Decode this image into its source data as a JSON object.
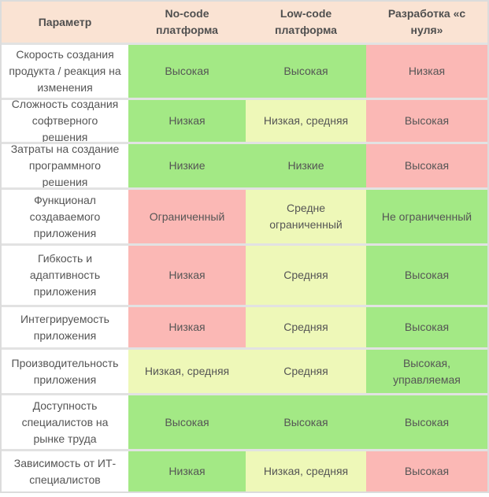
{
  "palette": {
    "header_bg": "#fae3d3",
    "good_green": "#a3e985",
    "medium_yellow": "#eef8b8",
    "bad_pink": "#fbb8b5",
    "row_separator": "#e2e2e2",
    "outer_border": "#dcdcdc",
    "text": "#555555",
    "header_text": "#4f4f4f",
    "param_bg": "#ffffff"
  },
  "table": {
    "headers": [
      {
        "label": "Параметр"
      },
      {
        "label": "No-code платформа"
      },
      {
        "label": "Low-code платформа"
      },
      {
        "label": "Разработка «с нуля»"
      }
    ],
    "rows": [
      {
        "param": "Скорость создания продукта / реакция на изменения",
        "cells": [
          {
            "text": "Высокая",
            "bg": "#a3e985",
            "level": "good"
          },
          {
            "text": "Высокая",
            "bg": "#a3e985",
            "level": "good"
          },
          {
            "text": "Низкая",
            "bg": "#fbb8b5",
            "level": "bad"
          }
        ]
      },
      {
        "param": "Сложность создания софтверного решения",
        "cells": [
          {
            "text": "Низкая",
            "bg": "#a3e985",
            "level": "good"
          },
          {
            "text": "Низкая, средняя",
            "bg": "#eef8b8",
            "level": "medium"
          },
          {
            "text": "Высокая",
            "bg": "#fbb8b5",
            "level": "bad"
          }
        ]
      },
      {
        "param": "Затраты на создание программного решения",
        "cells": [
          {
            "text": "Низкие",
            "bg": "#a3e985",
            "level": "good"
          },
          {
            "text": "Низкие",
            "bg": "#a3e985",
            "level": "good"
          },
          {
            "text": "Высокая",
            "bg": "#fbb8b5",
            "level": "bad"
          }
        ]
      },
      {
        "param": "Функционал создаваемого приложения",
        "cells": [
          {
            "text": "Ограниченный",
            "bg": "#fbb8b5",
            "level": "bad"
          },
          {
            "text": "Средне ограниченный",
            "bg": "#eef8b8",
            "level": "medium"
          },
          {
            "text": "Не ограниченный",
            "bg": "#a3e985",
            "level": "good"
          }
        ]
      },
      {
        "param": "Гибкость и адаптивность приложения",
        "cells": [
          {
            "text": "Низкая",
            "bg": "#fbb8b5",
            "level": "bad"
          },
          {
            "text": "Средняя",
            "bg": "#eef8b8",
            "level": "medium"
          },
          {
            "text": "Высокая",
            "bg": "#a3e985",
            "level": "good"
          }
        ]
      },
      {
        "param": "Интегрируемость приложения",
        "cells": [
          {
            "text": "Низкая",
            "bg": "#fbb8b5",
            "level": "bad"
          },
          {
            "text": "Средняя",
            "bg": "#eef8b8",
            "level": "medium"
          },
          {
            "text": "Высокая",
            "bg": "#a3e985",
            "level": "good"
          }
        ]
      },
      {
        "param": "Производительность приложения",
        "cells": [
          {
            "text": "Низкая, средняя",
            "bg": "#eef8b8",
            "level": "medium"
          },
          {
            "text": "Средняя",
            "bg": "#eef8b8",
            "level": "medium"
          },
          {
            "text": "Высокая, управляемая",
            "bg": "#a3e985",
            "level": "good"
          }
        ]
      },
      {
        "param": "Доступность специалистов на рынке труда",
        "cells": [
          {
            "text": "Высокая",
            "bg": "#a3e985",
            "level": "good"
          },
          {
            "text": "Высокая",
            "bg": "#a3e985",
            "level": "good"
          },
          {
            "text": "Высокая",
            "bg": "#a3e985",
            "level": "good"
          }
        ]
      },
      {
        "param": "Зависимость от ИТ-специалистов",
        "cells": [
          {
            "text": "Низкая",
            "bg": "#a3e985",
            "level": "good"
          },
          {
            "text": "Низкая, средняя",
            "bg": "#eef8b8",
            "level": "medium"
          },
          {
            "text": "Высокая",
            "bg": "#fbb8b5",
            "level": "bad"
          }
        ]
      }
    ]
  },
  "chart_data": {
    "type": "table",
    "title": "",
    "columns": [
      "Параметр",
      "No-code платформа",
      "Low-code платформа",
      "Разработка «с нуля»"
    ],
    "rows": [
      [
        "Скорость создания продукта / реакция на изменения",
        "Высокая",
        "Высокая",
        "Низкая"
      ],
      [
        "Сложность создания софтверного решения",
        "Низкая",
        "Низкая, средняя",
        "Высокая"
      ],
      [
        "Затраты на создание программного решения",
        "Низкие",
        "Низкие",
        "Высокая"
      ],
      [
        "Функционал создаваемого приложения",
        "Ограниченный",
        "Средне ограниченный",
        "Не ограниченный"
      ],
      [
        "Гибкость и адаптивность приложения",
        "Низкая",
        "Средняя",
        "Высокая"
      ],
      [
        "Интегрируемость приложения",
        "Низкая",
        "Средняя",
        "Высокая"
      ],
      [
        "Производительность приложения",
        "Низкая, средняя",
        "Средняя",
        "Высокая, управляемая"
      ],
      [
        "Доступность специалистов на рынке труда",
        "Высокая",
        "Высокая",
        "Высокая"
      ],
      [
        "Зависимость от ИТ-специалистов",
        "Низкая",
        "Низкая, средняя",
        "Высокая"
      ]
    ],
    "cell_colors": [
      [
        "green",
        "green",
        "red"
      ],
      [
        "green",
        "yellow",
        "red"
      ],
      [
        "green",
        "green",
        "red"
      ],
      [
        "red",
        "yellow",
        "green"
      ],
      [
        "red",
        "yellow",
        "green"
      ],
      [
        "red",
        "yellow",
        "green"
      ],
      [
        "yellow",
        "yellow",
        "green"
      ],
      [
        "green",
        "green",
        "green"
      ],
      [
        "green",
        "yellow",
        "red"
      ]
    ],
    "color_hex": {
      "green": "#a3e985",
      "yellow": "#eef8b8",
      "red": "#fbb8b5",
      "header": "#fae3d3"
    },
    "layout": {
      "header_position": "top",
      "grid": "horizontal-separators-only"
    }
  }
}
